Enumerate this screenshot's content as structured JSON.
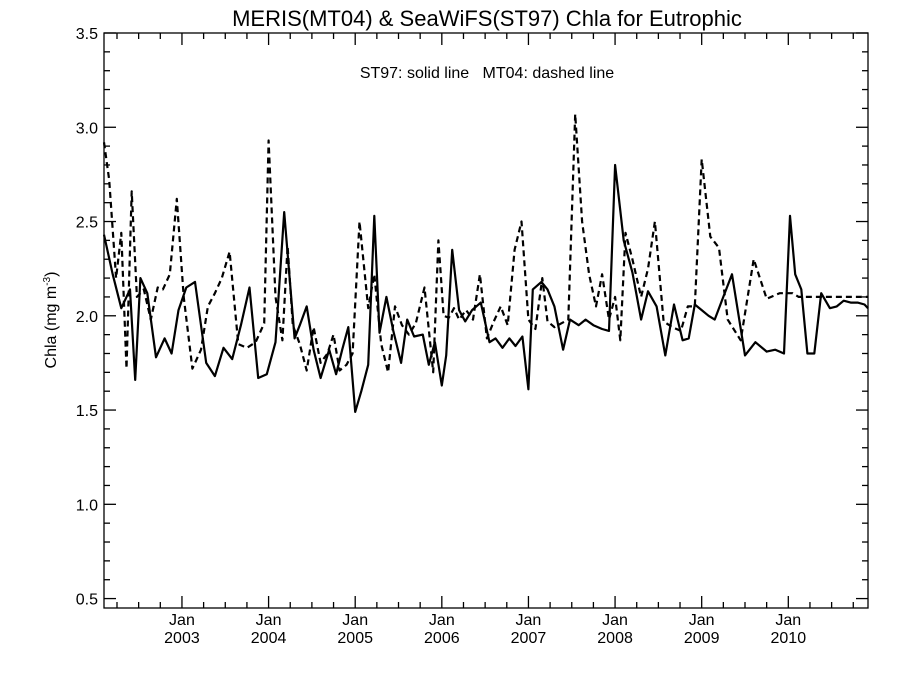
{
  "chart_data": {
    "type": "line",
    "title": "MERIS(MT04) & SeaWiFS(ST97)  Chla for Eutrophic",
    "annotation": "ST97: solid line   MT04: dashed line",
    "ylabel_main": "Chla (mg m",
    "ylabel_sup": "-3",
    "ylabel_close": ")",
    "xlabel": "",
    "xlim": [
      2002.1,
      2010.92
    ],
    "ylim": [
      0.45,
      3.5
    ],
    "yticks": [
      {
        "value": 0.5,
        "label": "0.5"
      },
      {
        "value": 1.0,
        "label": "1.0"
      },
      {
        "value": 1.5,
        "label": "1.5"
      },
      {
        "value": 2.0,
        "label": "2.0"
      },
      {
        "value": 2.5,
        "label": "2.5"
      },
      {
        "value": 3.0,
        "label": "3.0"
      },
      {
        "value": 3.5,
        "label": "3.5"
      }
    ],
    "xticks": [
      {
        "value": 2003.0,
        "month": "Jan",
        "year": "2003"
      },
      {
        "value": 2004.0,
        "month": "Jan",
        "year": "2004"
      },
      {
        "value": 2005.0,
        "month": "Jan",
        "year": "2005"
      },
      {
        "value": 2006.0,
        "month": "Jan",
        "year": "2006"
      },
      {
        "value": 2007.0,
        "month": "Jan",
        "year": "2007"
      },
      {
        "value": 2008.0,
        "month": "Jan",
        "year": "2008"
      },
      {
        "value": 2009.0,
        "month": "Jan",
        "year": "2009"
      },
      {
        "value": 2010.0,
        "month": "Jan",
        "year": "2010"
      }
    ],
    "series": [
      {
        "name": "ST97",
        "style": "solid",
        "x": [
          2002.1,
          2002.2,
          2002.3,
          2002.4,
          2002.46,
          2002.52,
          2002.6,
          2002.7,
          2002.8,
          2002.88,
          2002.96,
          2003.05,
          2003.15,
          2003.28,
          2003.38,
          2003.48,
          2003.58,
          2003.68,
          2003.78,
          2003.88,
          2003.98,
          2004.08,
          2004.18,
          2004.3,
          2004.36,
          2004.44,
          2004.52,
          2004.6,
          2004.7,
          2004.78,
          2004.85,
          2004.92,
          2005.0,
          2005.07,
          2005.15,
          2005.22,
          2005.28,
          2005.36,
          2005.44,
          2005.53,
          2005.6,
          2005.68,
          2005.78,
          2005.85,
          2005.92,
          2006.0,
          2006.05,
          2006.12,
          2006.2,
          2006.27,
          2006.35,
          2006.45,
          2006.55,
          2006.62,
          2006.7,
          2006.78,
          2006.85,
          2006.93,
          2007.0,
          2007.05,
          2007.15,
          2007.22,
          2007.3,
          2007.4,
          2007.48,
          2007.58,
          2007.66,
          2007.75,
          2007.85,
          2007.93,
          2008.0,
          2008.1,
          2008.2,
          2008.3,
          2008.38,
          2008.48,
          2008.58,
          2008.68,
          2008.78,
          2008.85,
          2008.92,
          2009.0,
          2009.08,
          2009.15,
          2009.25,
          2009.35,
          2009.5,
          2009.62,
          2009.75,
          2009.85,
          2009.95,
          2010.02,
          2010.08,
          2010.15,
          2010.22,
          2010.3,
          2010.38,
          2010.48,
          2010.56,
          2010.64,
          2010.72,
          2010.8,
          2010.88,
          2010.92
        ],
        "values": [
          2.43,
          2.22,
          2.04,
          2.14,
          1.66,
          2.2,
          2.12,
          1.78,
          1.88,
          1.8,
          2.03,
          2.15,
          2.18,
          1.75,
          1.68,
          1.83,
          1.77,
          1.95,
          2.15,
          1.67,
          1.69,
          1.86,
          2.55,
          1.88,
          1.95,
          2.05,
          1.82,
          1.67,
          1.82,
          1.69,
          1.82,
          1.94,
          1.49,
          1.6,
          1.74,
          2.53,
          1.91,
          2.1,
          1.92,
          1.75,
          1.98,
          1.89,
          1.9,
          1.74,
          1.86,
          1.63,
          1.79,
          2.35,
          2.03,
          1.97,
          2.03,
          2.07,
          1.86,
          1.88,
          1.83,
          1.88,
          1.84,
          1.89,
          1.61,
          2.14,
          2.18,
          2.14,
          2.05,
          1.82,
          1.98,
          1.95,
          1.98,
          1.95,
          1.93,
          1.92,
          2.8,
          2.4,
          2.23,
          1.98,
          2.13,
          2.05,
          1.79,
          2.06,
          1.87,
          1.88,
          2.06,
          2.03,
          2.0,
          1.98,
          2.1,
          2.22,
          1.79,
          1.86,
          1.81,
          1.82,
          1.8,
          2.53,
          2.22,
          2.14,
          1.8,
          1.8,
          2.12,
          2.04,
          2.05,
          2.08,
          2.07,
          2.07,
          2.06,
          2.04
        ]
      },
      {
        "name": "MT04",
        "style": "dashed",
        "x": [
          2002.1,
          2002.16,
          2002.24,
          2002.3,
          2002.36,
          2002.42,
          2002.48,
          2002.56,
          2002.64,
          2002.72,
          2002.78,
          2002.86,
          2002.94,
          2003.02,
          2003.12,
          2003.22,
          2003.3,
          2003.38,
          2003.46,
          2003.55,
          2003.65,
          2003.75,
          2003.85,
          2003.95,
          2004.0,
          2004.08,
          2004.16,
          2004.22,
          2004.28,
          2004.36,
          2004.44,
          2004.52,
          2004.6,
          2004.68,
          2004.75,
          2004.82,
          2004.9,
          2004.97,
          2005.05,
          2005.15,
          2005.22,
          2005.3,
          2005.38,
          2005.46,
          2005.54,
          2005.62,
          2005.7,
          2005.8,
          2005.9,
          2005.96,
          2006.02,
          2006.08,
          2006.14,
          2006.2,
          2006.28,
          2006.36,
          2006.44,
          2006.52,
          2006.6,
          2006.68,
          2006.76,
          2006.84,
          2006.92,
          2007.0,
          2007.08,
          2007.16,
          2007.22,
          2007.3,
          2007.38,
          2007.46,
          2007.54,
          2007.62,
          2007.7,
          2007.78,
          2007.85,
          2007.93,
          2008.0,
          2008.06,
          2008.12,
          2008.2,
          2008.3,
          2008.38,
          2008.46,
          2008.56,
          2008.66,
          2008.76,
          2008.84,
          2008.92,
          2009.0,
          2009.1,
          2009.2,
          2009.3,
          2009.45,
          2009.6,
          2009.75,
          2009.9,
          2010.0,
          2010.05,
          2010.12,
          2010.2,
          2010.28,
          2010.36,
          2010.44,
          2010.52,
          2010.6,
          2010.68,
          2010.74,
          2010.8,
          2010.86,
          2010.92
        ],
        "values": [
          2.92,
          2.72,
          2.2,
          2.44,
          1.72,
          2.66,
          2.1,
          2.14,
          1.98,
          2.15,
          2.14,
          2.22,
          2.62,
          2.1,
          1.72,
          1.82,
          2.05,
          2.12,
          2.2,
          2.34,
          1.85,
          1.83,
          1.86,
          1.96,
          2.93,
          2.1,
          1.87,
          2.37,
          1.95,
          1.85,
          1.71,
          1.94,
          1.75,
          1.8,
          1.9,
          1.71,
          1.74,
          1.8,
          2.5,
          2.04,
          2.22,
          1.85,
          1.7,
          2.05,
          1.95,
          1.9,
          1.96,
          2.15,
          1.7,
          2.4,
          2.0,
          1.99,
          2.04,
          1.98,
          2.03,
          1.98,
          2.22,
          1.88,
          1.97,
          2.05,
          1.95,
          2.35,
          2.5,
          1.98,
          1.93,
          2.2,
          1.97,
          1.94,
          1.96,
          1.98,
          3.07,
          2.5,
          2.22,
          2.05,
          2.22,
          1.98,
          2.1,
          1.87,
          2.44,
          2.3,
          2.1,
          2.25,
          2.5,
          1.97,
          1.94,
          1.92,
          2.05,
          2.05,
          2.83,
          2.42,
          2.36,
          1.98,
          1.87,
          2.3,
          2.09,
          2.12,
          2.12,
          2.12,
          2.1,
          2.1,
          2.1,
          2.1,
          2.1,
          2.1,
          2.1,
          2.1,
          2.1,
          2.1,
          2.1,
          2.1
        ]
      }
    ]
  }
}
